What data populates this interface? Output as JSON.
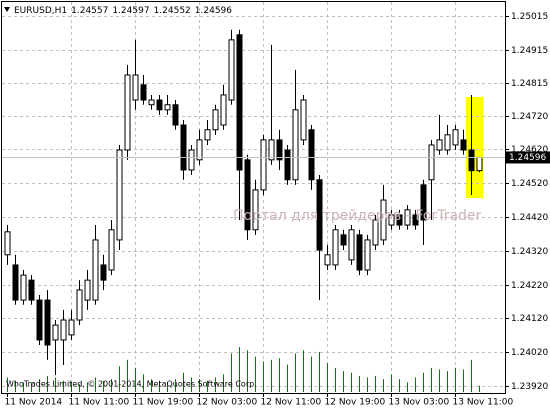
{
  "chart_data": {
    "type": "candlestick",
    "symbol": "EURUSD,H1",
    "watermark": "Портал для трейдеров - ForTrader",
    "copyright": "WhoTrades Limited, © 2001-2014, MetaQuotes Software Corp.",
    "categories": [
      "11 Nov 2014",
      null,
      null,
      null,
      null,
      null,
      null,
      null,
      "11 Nov 11:00",
      null,
      null,
      null,
      null,
      null,
      null,
      null,
      "11 Nov 19:00",
      null,
      null,
      null,
      null,
      null,
      null,
      null,
      "12 Nov 03:00",
      null,
      null,
      null,
      null,
      null,
      null,
      null,
      "12 Nov 11:00",
      null,
      null,
      null,
      null,
      null,
      null,
      null,
      "12 Nov 19:00",
      null,
      null,
      null,
      null,
      null,
      null,
      null,
      "13 Nov 03:00",
      null,
      null,
      null,
      null,
      null,
      null,
      null,
      "13 Nov 11:00",
      null,
      null,
      null
    ],
    "open": [
      1.24308,
      1.24278,
      1.24174,
      1.24233,
      1.24174,
      1.24174,
      1.24056,
      1.24056,
      1.24071,
      1.24115,
      1.24174,
      1.24174,
      1.24278,
      1.24263,
      1.24352,
      1.24618,
      1.24766,
      1.24811,
      1.24752,
      1.24766,
      1.24737,
      1.24752,
      1.24692,
      1.24559,
      1.24589,
      1.24648,
      1.24678,
      1.24692,
      1.24766,
      1.24959,
      1.24589,
      1.24382,
      1.245,
      1.24589,
      1.24648,
      1.24618,
      1.2453,
      1.24648,
      1.24678,
      1.2453,
      1.24278,
      1.24278,
      1.24367,
      1.24293,
      1.24367,
      1.24263,
      1.24337,
      1.24352,
      1.24396,
      1.24426,
      1.24396,
      1.24426,
      1.24515,
      1.2453,
      1.24618,
      1.24618,
      1.24633,
      1.24648,
      1.24618,
      1.24557
    ],
    "high": [
      1.24396,
      1.24308,
      1.24263,
      1.24248,
      1.24189,
      1.24204,
      1.24115,
      1.24145,
      1.24145,
      1.24233,
      1.24263,
      1.24396,
      1.24308,
      1.24411,
      1.24633,
      1.2487,
      1.24944,
      1.2484,
      1.24781,
      1.24781,
      1.24781,
      1.24766,
      1.24707,
      1.24633,
      1.24678,
      1.24707,
      1.24752,
      1.24811,
      1.24974,
      1.24974,
      1.24604,
      1.2453,
      1.24663,
      1.24929,
      1.24678,
      1.24633,
      1.24855,
      1.24781,
      1.24692,
      1.24544,
      1.24337,
      1.24396,
      1.24382,
      1.24396,
      1.24382,
      1.24367,
      1.24426,
      1.24515,
      1.24441,
      1.24441,
      1.24455,
      1.24441,
      1.2453,
      1.24648,
      1.24722,
      1.24692,
      1.24692,
      1.24678,
      1.24781,
      1.24597
    ],
    "low": [
      1.24278,
      1.2416,
      1.2416,
      1.2416,
      1.24041,
      1.23997,
      1.23952,
      1.23982,
      1.24056,
      1.241,
      1.24145,
      1.2416,
      1.24204,
      1.24248,
      1.24322,
      1.24589,
      1.24737,
      1.24752,
      1.24737,
      1.24722,
      1.24722,
      1.24678,
      1.2453,
      1.24544,
      1.24574,
      1.24633,
      1.24663,
      1.24678,
      1.24752,
      1.24411,
      1.24352,
      1.24367,
      1.24485,
      1.24574,
      1.24559,
      1.24515,
      1.24515,
      1.24633,
      1.245,
      1.24174,
      1.24263,
      1.24263,
      1.24322,
      1.24278,
      1.24248,
      1.24248,
      1.24322,
      1.24337,
      1.24382,
      1.24382,
      1.24382,
      1.24382,
      1.24337,
      1.24411,
      1.24604,
      1.24604,
      1.24618,
      1.24604,
      1.24485,
      1.24552
    ],
    "close": [
      1.24376,
      1.24174,
      1.24248,
      1.24174,
      1.24056,
      1.24041,
      1.241,
      1.24115,
      1.24115,
      1.24204,
      1.24233,
      1.24352,
      1.24233,
      1.24382,
      1.24618,
      1.2484,
      1.2484,
      1.24766,
      1.24766,
      1.24737,
      1.24752,
      1.24692,
      1.24559,
      1.24618,
      1.24648,
      1.24678,
      1.24737,
      1.24781,
      1.24944,
      1.24559,
      1.24382,
      1.245,
      1.24648,
      1.24648,
      1.24589,
      1.2453,
      1.24737,
      1.24766,
      1.2453,
      1.24322,
      1.24308,
      1.24382,
      1.24337,
      1.24382,
      1.24263,
      1.24352,
      1.24411,
      1.2447,
      1.24426,
      1.24396,
      1.24441,
      1.24396,
      1.24411,
      1.24633,
      1.24648,
      1.24663,
      1.24678,
      1.24618,
      1.24557,
      1.24596
    ],
    "volume": [
      900,
      700,
      600,
      600,
      800,
      1000,
      900,
      700,
      600,
      500,
      600,
      900,
      700,
      800,
      1600,
      2000,
      1500,
      1100,
      800,
      700,
      600,
      800,
      1200,
      900,
      800,
      700,
      900,
      1100,
      2400,
      2800,
      2600,
      2200,
      1900,
      2000,
      2100,
      1700,
      2400,
      2600,
      2200,
      2500,
      1800,
      1500,
      1300,
      1200,
      1000,
      900,
      1000,
      800,
      1100,
      800,
      600,
      900,
      1200,
      1500,
      1400,
      1300,
      1500,
      1400,
      2000,
      400
    ],
    "ylim": [
      1.23902,
      1.25056
    ],
    "yticks": [
      1.25015,
      1.24915,
      1.24815,
      {
        "value": 1.2472,
        "label": "1.24720"
      },
      {
        "value": 1.2462,
        "label": "1.24620"
      },
      {
        "value": 1.2452,
        "label": "1.24520"
      },
      {
        "value": 1.2442,
        "label": "1.24420"
      },
      {
        "value": 1.2432,
        "label": "1.24320"
      },
      {
        "value": 1.2422,
        "label": "1.24220"
      },
      {
        "value": 1.2412,
        "label": "1.24120"
      },
      {
        "value": 1.2402,
        "label": "1.24020"
      },
      {
        "value": 1.2392,
        "label": "1.23920"
      }
    ],
    "grid": true,
    "bull_color": "#ffffff",
    "bear_color": "#000000",
    "volume_color": "#008000"
  }
}
